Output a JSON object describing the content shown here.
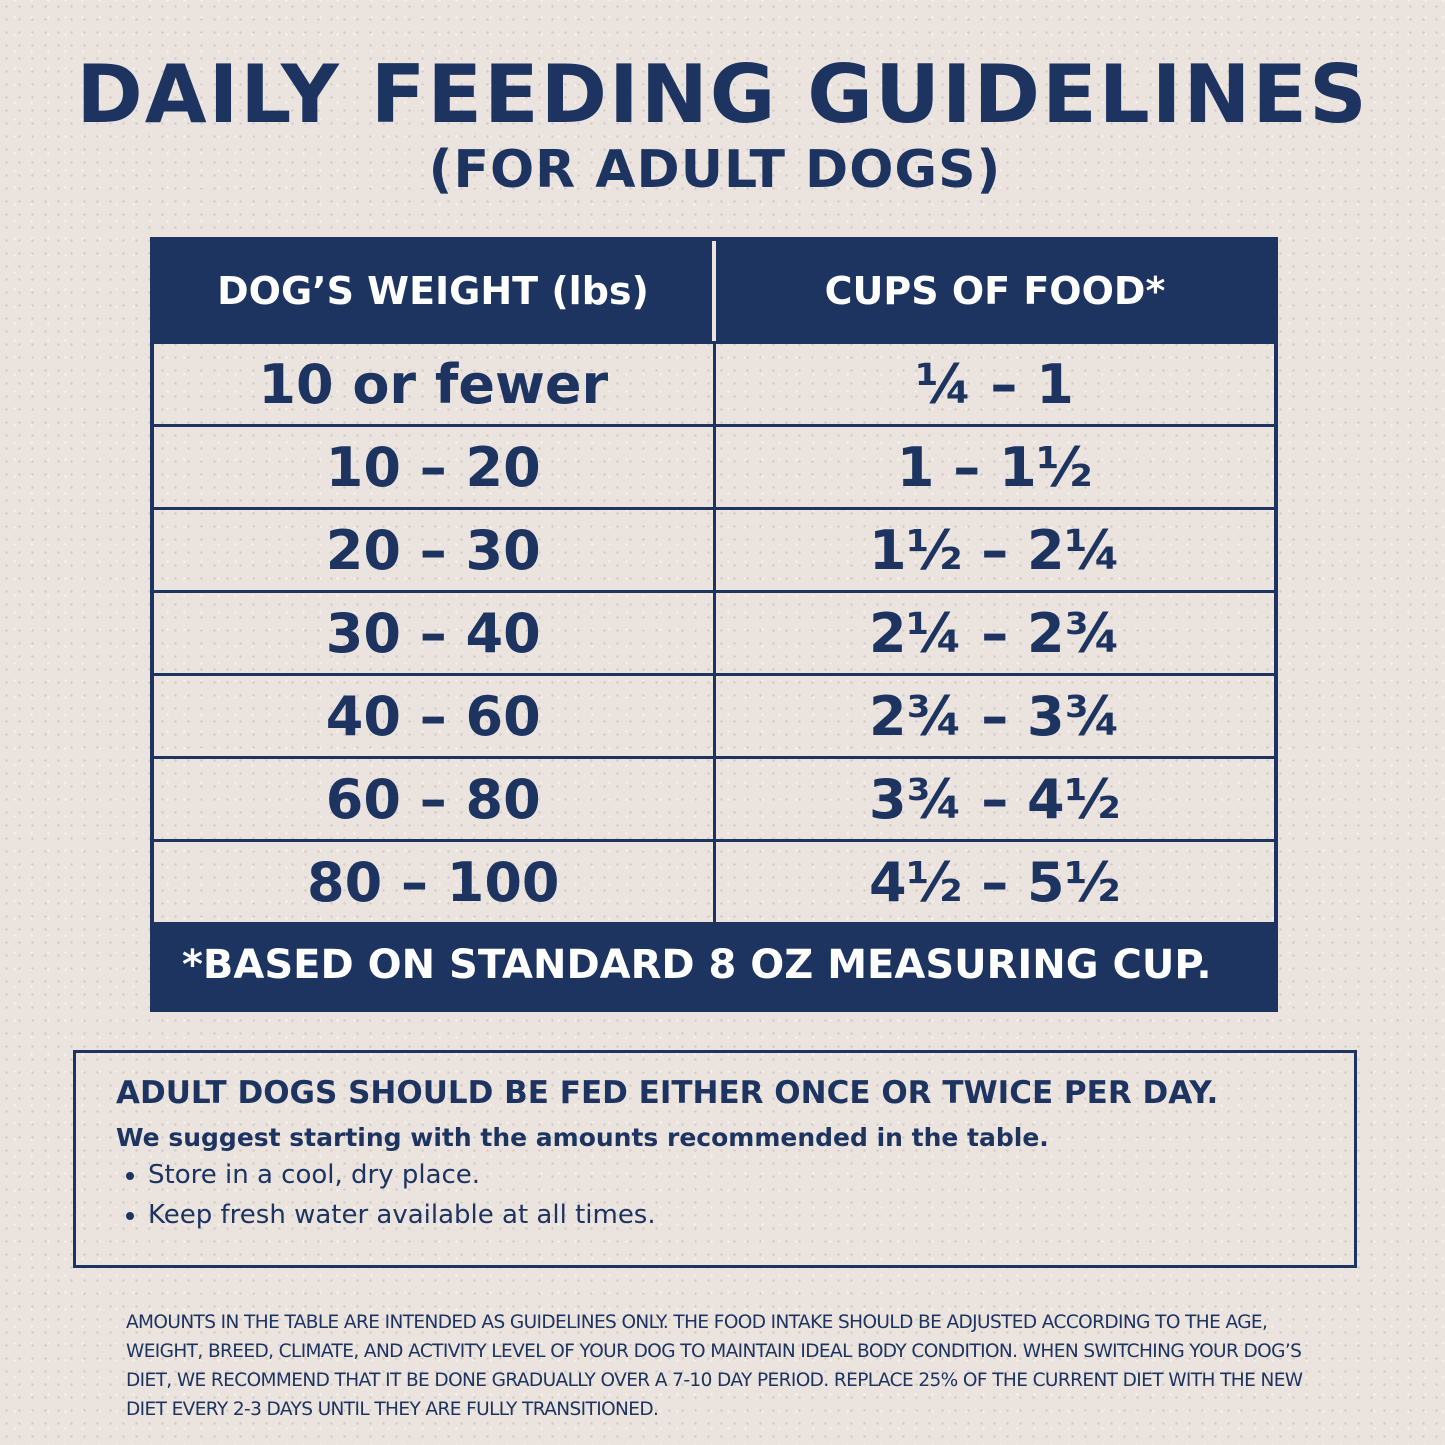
{
  "header": {
    "title": "DAILY FEEDING GUIDELINES",
    "subtitle": "(FOR ADULT DOGS)"
  },
  "table": {
    "columns": [
      "DOG’S WEIGHT (lbs)",
      "CUPS OF FOOD*"
    ],
    "rows": [
      [
        "10 or fewer",
        "¼ – 1"
      ],
      [
        "10 – 20",
        "1 – 1½"
      ],
      [
        "20 – 30",
        "1½ – 2¼"
      ],
      [
        "30 – 40",
        "2¼ – 2¾"
      ],
      [
        "40 – 60",
        "2¾ – 3¾"
      ],
      [
        "60 – 80",
        "3¾ – 4½"
      ],
      [
        "80 – 100",
        "4½ – 5½"
      ]
    ],
    "footnote": "*BASED ON STANDARD 8 OZ MEASURING CUP."
  },
  "info": {
    "heading": "ADULT DOGS SHOULD BE FED EITHER ONCE OR TWICE PER DAY.",
    "subheading": "We suggest starting with the amounts recommended in the table.",
    "bullets": [
      "Store in a cool, dry place.",
      "Keep fresh water available at all times."
    ]
  },
  "disclaimer": "Amounts in the table are intended as guidelines only. The food intake should be adjusted according to the age, weight, breed, climate, and activity level of your dog to maintain ideal body condition. When switching your dog’s diet, we recommend that it be done gradually over a 7-10 day period. Replace 25% of the current diet with the new diet every 2-3 days until they are fully transitioned."
}
